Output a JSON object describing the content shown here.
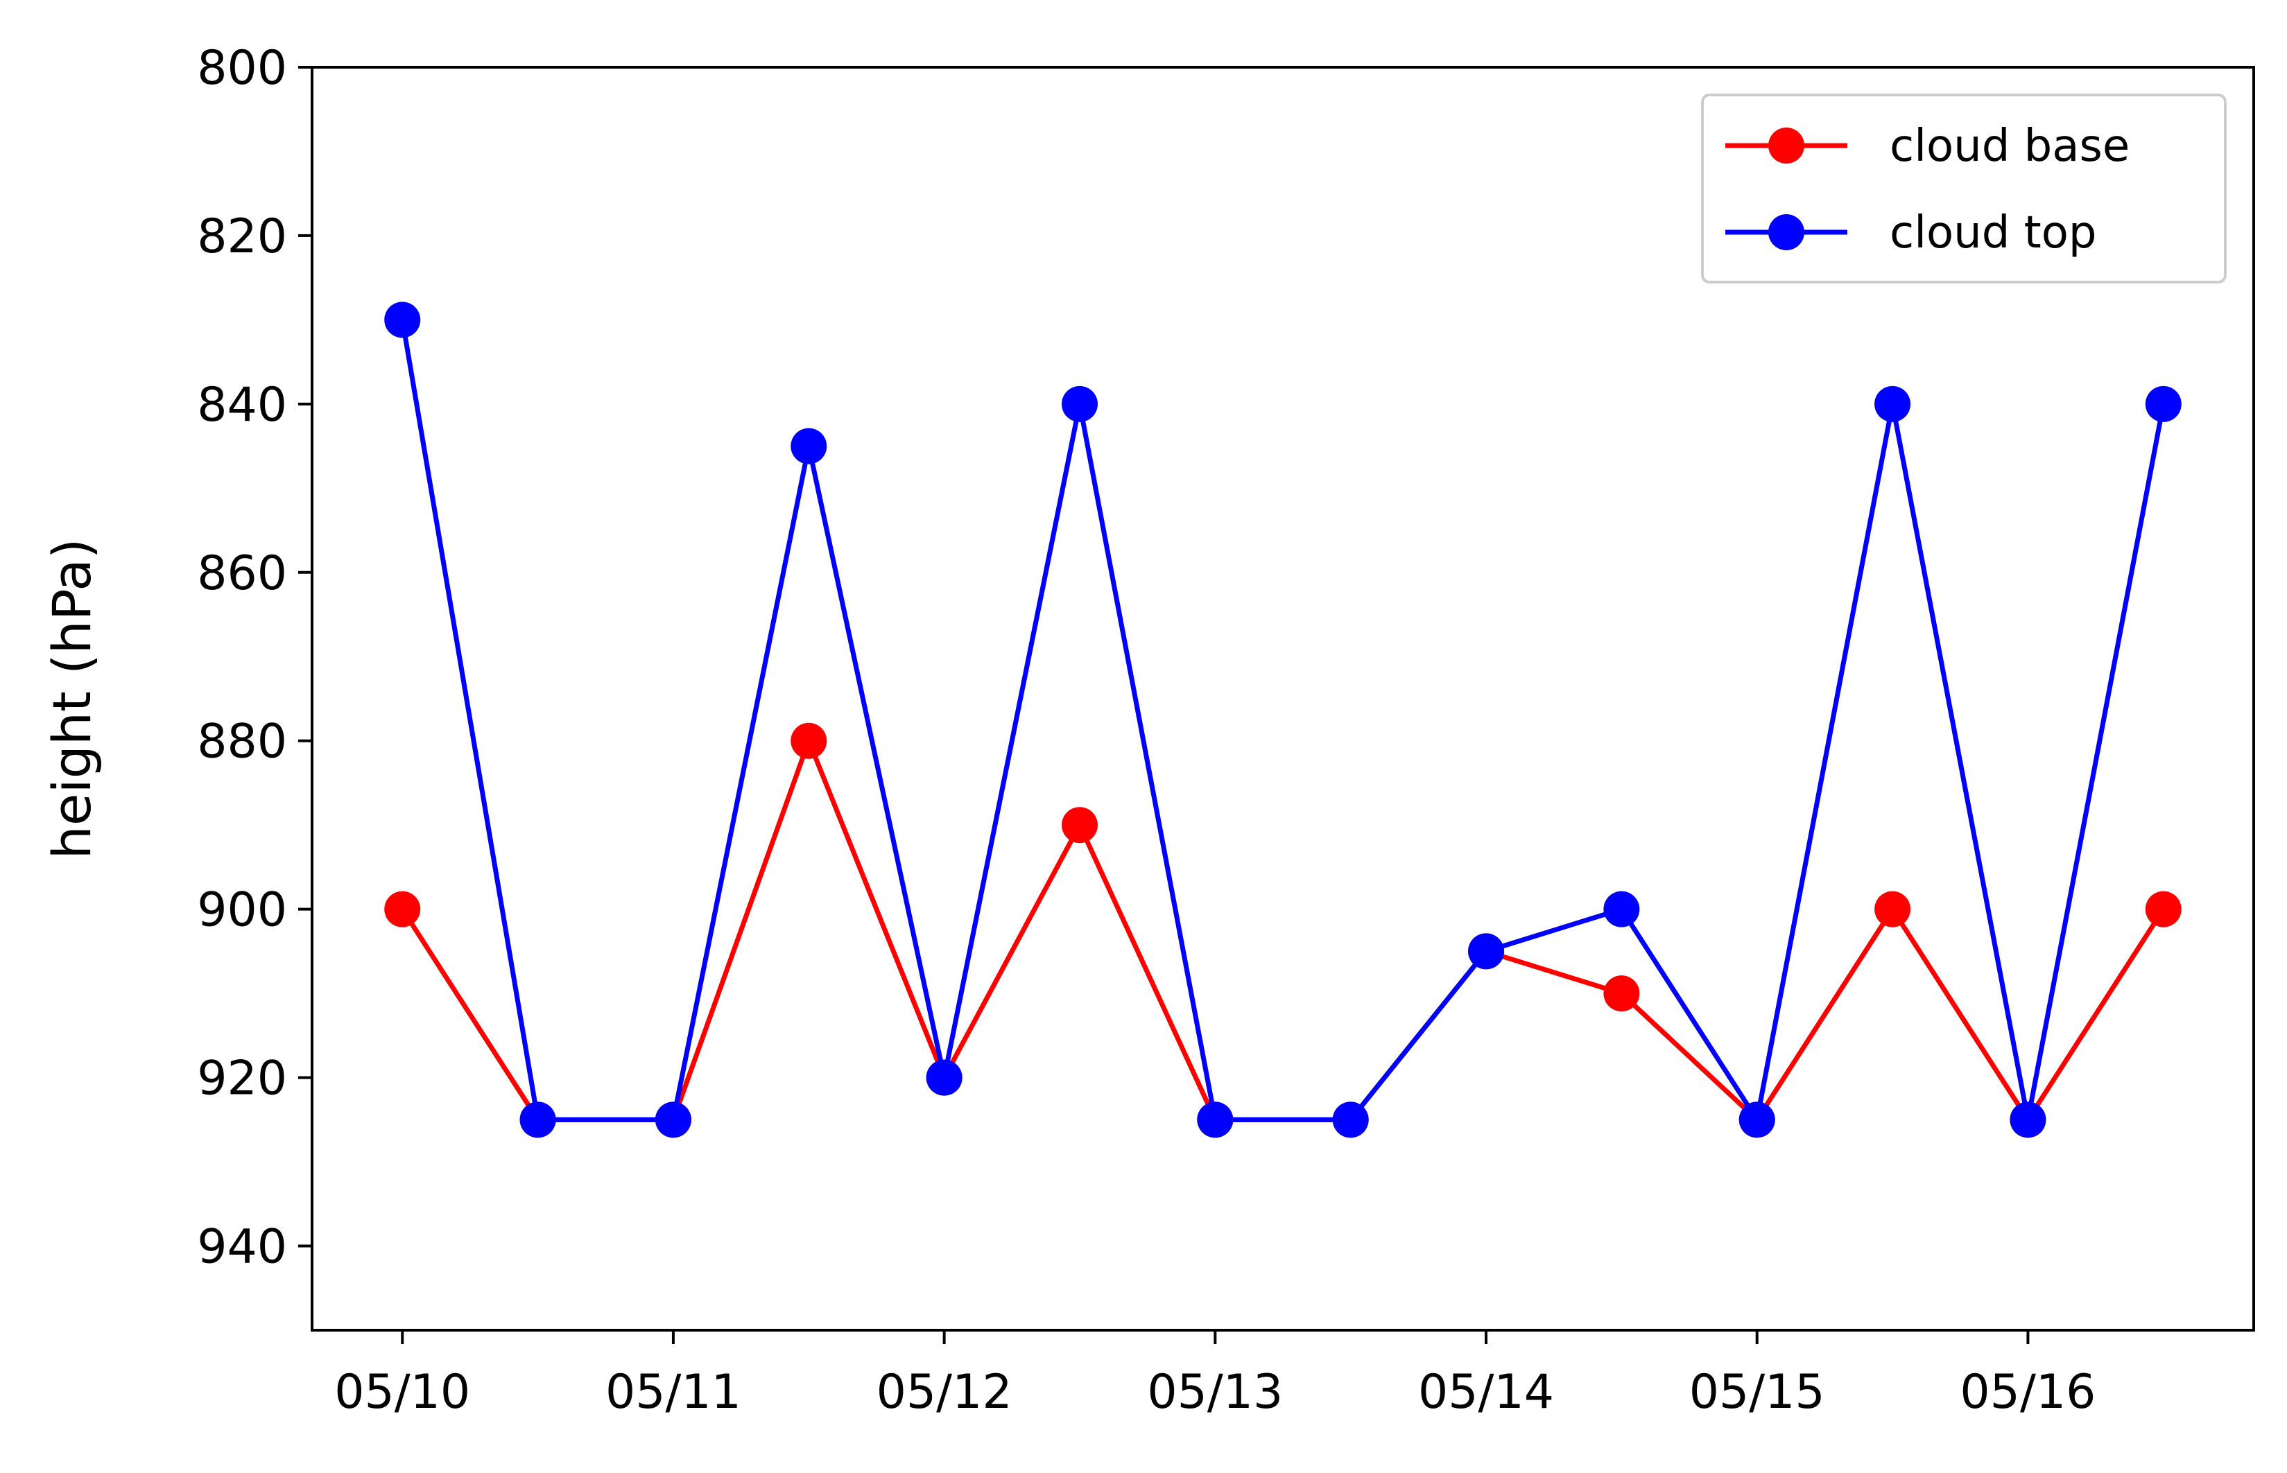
{
  "chart_data": {
    "type": "line",
    "title": "",
    "xlabel": "",
    "ylabel": "height (hPa)",
    "y_inverted": true,
    "ylim": [
      950,
      800
    ],
    "xlim": [
      "05/09 16:00",
      "05/16 20:00"
    ],
    "grid": false,
    "legend_position": "top-right",
    "x": [
      "05/10 00:00",
      "05/10 12:00",
      "05/11 00:00",
      "05/11 12:00",
      "05/12 00:00",
      "05/12 12:00",
      "05/13 00:00",
      "05/13 12:00",
      "05/14 00:00",
      "05/14 12:00",
      "05/15 00:00",
      "05/15 12:00",
      "05/16 00:00",
      "05/16 12:00"
    ],
    "x_tick_labels": [
      "05/10",
      "05/11",
      "05/12",
      "05/13",
      "05/14",
      "05/15",
      "05/16"
    ],
    "y_ticks": [
      800,
      820,
      840,
      860,
      880,
      900,
      920,
      940
    ],
    "series": [
      {
        "name": "cloud base",
        "color": "#ff0000",
        "values": [
          900,
          925,
          925,
          880,
          920,
          890,
          925,
          925,
          905,
          910,
          925,
          900,
          925,
          900
        ]
      },
      {
        "name": "cloud top",
        "color": "#0000ff",
        "values": [
          830,
          925,
          925,
          845,
          920,
          840,
          925,
          925,
          905,
          900,
          925,
          840,
          925,
          840
        ]
      }
    ]
  }
}
